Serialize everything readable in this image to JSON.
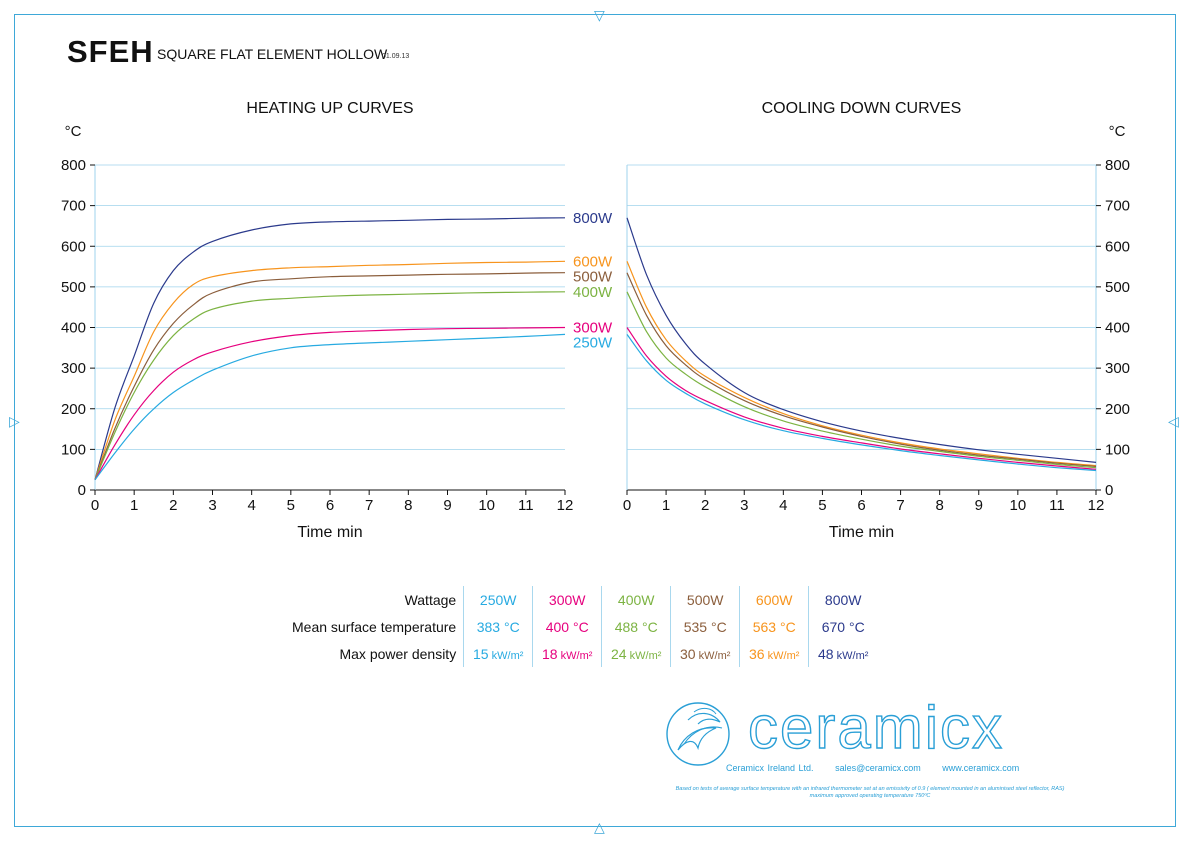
{
  "header": {
    "code": "SFEH",
    "name": "SQUARE FLAT ELEMENT HOLLOW",
    "date": "01.09.13"
  },
  "chart_data": [
    {
      "type": "line",
      "title": "HEATING UP CURVES",
      "xlabel": "Time min",
      "ylabel": "°C",
      "xlim": [
        0,
        12
      ],
      "ylim": [
        0,
        800
      ],
      "xticks": [
        "0",
        "1",
        "2",
        "3",
        "4",
        "5",
        "6",
        "7",
        "8",
        "9",
        "10",
        "11",
        "12"
      ],
      "yticks": [
        "0",
        "100",
        "200",
        "300",
        "400",
        "500",
        "600",
        "700",
        "800"
      ],
      "grid": true,
      "x": [
        0,
        0.5,
        1,
        1.5,
        2,
        2.5,
        3,
        4,
        5,
        6,
        7,
        8,
        9,
        10,
        11,
        12
      ],
      "series": [
        {
          "name": "800W",
          "color": "#2b3a8c",
          "values": [
            25,
            200,
            330,
            460,
            540,
            585,
            612,
            640,
            655,
            660,
            662,
            664,
            666,
            667,
            669,
            670
          ]
        },
        {
          "name": "600W",
          "color": "#f7941d",
          "values": [
            25,
            170,
            280,
            390,
            460,
            505,
            525,
            540,
            547,
            550,
            553,
            555,
            558,
            560,
            561,
            563
          ]
        },
        {
          "name": "500W",
          "color": "#8b5e3c",
          "values": [
            25,
            150,
            255,
            345,
            410,
            455,
            485,
            512,
            520,
            525,
            527,
            529,
            531,
            532,
            534,
            535
          ]
        },
        {
          "name": "400W",
          "color": "#7cb342",
          "values": [
            25,
            140,
            240,
            320,
            380,
            420,
            445,
            465,
            472,
            477,
            480,
            482,
            484,
            486,
            487,
            488
          ]
        },
        {
          "name": "300W",
          "color": "#e6007e",
          "values": [
            25,
            110,
            185,
            245,
            290,
            320,
            340,
            365,
            380,
            388,
            392,
            395,
            397,
            398,
            399,
            400
          ]
        },
        {
          "name": "250W",
          "color": "#27aae1",
          "values": [
            25,
            90,
            150,
            200,
            240,
            270,
            295,
            330,
            350,
            358,
            362,
            366,
            370,
            374,
            378,
            383
          ]
        }
      ]
    },
    {
      "type": "line",
      "title": "COOLING DOWN CURVES",
      "xlabel": "Time min",
      "ylabel": "°C",
      "xlim": [
        0,
        12
      ],
      "ylim": [
        0,
        800
      ],
      "xticks": [
        "0",
        "1",
        "2",
        "3",
        "4",
        "5",
        "6",
        "7",
        "8",
        "9",
        "10",
        "11",
        "12"
      ],
      "yticks": [
        "0",
        "100",
        "200",
        "300",
        "400",
        "500",
        "600",
        "700",
        "800"
      ],
      "grid": true,
      "x": [
        0,
        0.5,
        1,
        1.5,
        2,
        3,
        4,
        5,
        6,
        7,
        8,
        9,
        10,
        11,
        12
      ],
      "series": [
        {
          "name": "800W",
          "color": "#2b3a8c",
          "values": [
            670,
            530,
            430,
            360,
            310,
            240,
            198,
            168,
            145,
            127,
            112,
            99,
            88,
            78,
            68
          ]
        },
        {
          "name": "600W",
          "color": "#f7941d",
          "values": [
            563,
            450,
            370,
            318,
            280,
            228,
            188,
            158,
            135,
            116,
            101,
            89,
            78,
            68,
            60
          ]
        },
        {
          "name": "500W",
          "color": "#8b5e3c",
          "values": [
            535,
            430,
            355,
            308,
            272,
            220,
            183,
            155,
            132,
            113,
            98,
            86,
            76,
            66,
            58
          ]
        },
        {
          "name": "400W",
          "color": "#7cb342",
          "values": [
            488,
            390,
            325,
            285,
            254,
            205,
            170,
            145,
            125,
            108,
            95,
            83,
            73,
            63,
            55
          ]
        },
        {
          "name": "300W",
          "color": "#e6007e",
          "values": [
            400,
            330,
            280,
            245,
            220,
            180,
            152,
            132,
            116,
            101,
            89,
            78,
            68,
            59,
            51
          ]
        },
        {
          "name": "250W",
          "color": "#27aae1",
          "values": [
            383,
            318,
            270,
            238,
            212,
            173,
            146,
            127,
            111,
            97,
            85,
            74,
            64,
            55,
            48
          ]
        }
      ]
    }
  ],
  "spec_table": {
    "labels": {
      "wattage": "Wattage",
      "mean_temp": "Mean surface temperature",
      "power_density": "Max power density"
    },
    "power_unit": "kW/m²",
    "columns": [
      {
        "wattage": "250W",
        "temp": "383 °C",
        "density": "15",
        "color": "#27aae1"
      },
      {
        "wattage": "300W",
        "temp": "400 °C",
        "density": "18",
        "color": "#e6007e"
      },
      {
        "wattage": "400W",
        "temp": "488 °C",
        "density": "24",
        "color": "#7cb342"
      },
      {
        "wattage": "500W",
        "temp": "535 °C",
        "density": "30",
        "color": "#8b5e3c"
      },
      {
        "wattage": "600W",
        "temp": "563 °C",
        "density": "36",
        "color": "#f7941d"
      },
      {
        "wattage": "800W",
        "temp": "670 °C",
        "density": "48",
        "color": "#2b3a8c"
      }
    ]
  },
  "footer": {
    "brand": "ceramicx",
    "company": "Ceramicx Ireland Ltd.",
    "email": "sales@ceramicx.com",
    "website": "www.ceramicx.com",
    "note_line1": "Based on tests of average surface temperature with an infrared thermometer set at an emissivity of 0.9 ( element mounted in an aluminised steel reflector, RAS)",
    "note_line2": "maximum approved operating temperature 750ºC"
  },
  "colors": {
    "accent": "#27aae1",
    "grid": "#9fd3ec"
  }
}
